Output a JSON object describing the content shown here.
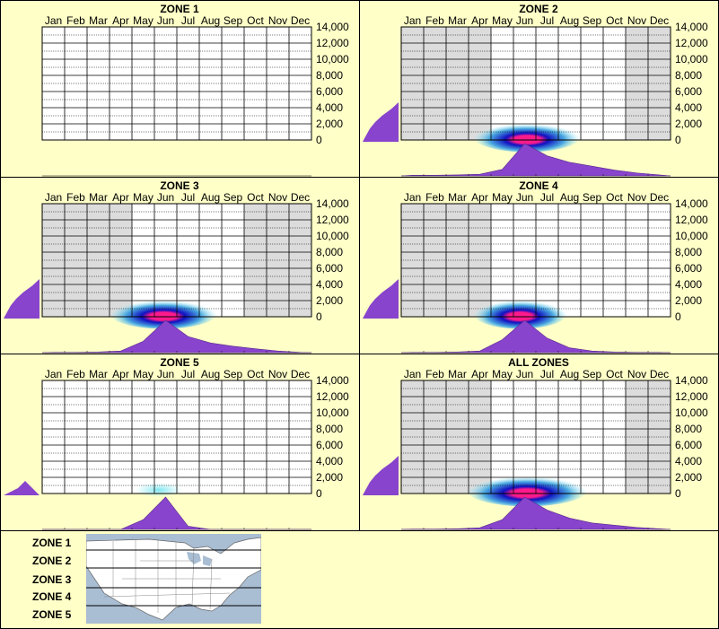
{
  "chart_data": [
    {
      "type": "heatmap",
      "title": "ZONE 1",
      "months": [
        "Jan",
        "Feb",
        "Mar",
        "Apr",
        "May",
        "Jun",
        "Jul",
        "Aug",
        "Sep",
        "Oct",
        "Nov",
        "Dec"
      ],
      "yticks": [
        "14,000",
        "12,000",
        "10,000",
        "8,000",
        "6,000",
        "4,000",
        "2,000",
        "0"
      ],
      "ylim": [
        0,
        14000
      ],
      "shaded_months": [],
      "hotspot": null,
      "elevation_profile": [],
      "seasonal_profile": []
    },
    {
      "type": "heatmap",
      "title": "ZONE 2",
      "months": [
        "Jan",
        "Feb",
        "Mar",
        "Apr",
        "May",
        "Jun",
        "Jul",
        "Aug",
        "Sep",
        "Oct",
        "Nov",
        "Dec"
      ],
      "yticks": [
        "14,000",
        "12,000",
        "10,000",
        "8,000",
        "6,000",
        "4,000",
        "2,000",
        "0"
      ],
      "ylim": [
        0,
        14000
      ],
      "shaded_months": [
        1,
        2,
        3,
        4,
        11,
        12
      ],
      "hotspot": {
        "month_center": 5.2,
        "month_spread": 1.6,
        "elevation_low": 0,
        "elevation_high": 1500,
        "peak_month": 5.2
      },
      "elevation_profile": [
        0.1,
        0.2,
        0.35,
        0.55,
        0.8,
        1.0
      ],
      "seasonal_profile": [
        0.02,
        0.02,
        0.03,
        0.05,
        0.2,
        1.0,
        0.62,
        0.42,
        0.3,
        0.18,
        0.09,
        0.03
      ]
    },
    {
      "type": "heatmap",
      "title": "ZONE 3",
      "months": [
        "Jan",
        "Feb",
        "Mar",
        "Apr",
        "May",
        "Jun",
        "Jul",
        "Aug",
        "Sep",
        "Oct",
        "Nov",
        "Dec"
      ],
      "yticks": [
        "14,000",
        "12,000",
        "10,000",
        "8,000",
        "6,000",
        "4,000",
        "2,000",
        "0"
      ],
      "ylim": [
        0,
        14000
      ],
      "shaded_months": [
        1,
        2,
        3,
        4,
        10,
        11,
        12
      ],
      "hotspot": {
        "month_center": 5.0,
        "month_spread": 1.6,
        "elevation_low": 0,
        "elevation_high": 1500,
        "peak_month": 5.0
      },
      "elevation_profile": [
        0.1,
        0.2,
        0.35,
        0.55,
        0.8,
        1.0
      ],
      "seasonal_profile": [
        0.01,
        0.01,
        0.02,
        0.05,
        0.35,
        1.0,
        0.5,
        0.3,
        0.2,
        0.12,
        0.05,
        0.01
      ]
    },
    {
      "type": "heatmap",
      "title": "ZONE 4",
      "months": [
        "Jan",
        "Feb",
        "Mar",
        "Apr",
        "May",
        "Jun",
        "Jul",
        "Aug",
        "Sep",
        "Oct",
        "Nov",
        "Dec"
      ],
      "yticks": [
        "14,000",
        "12,000",
        "10,000",
        "8,000",
        "6,000",
        "4,000",
        "2,000",
        "0"
      ],
      "ylim": [
        0,
        14000
      ],
      "shaded_months": [
        1,
        2,
        3,
        4
      ],
      "hotspot": {
        "month_center": 4.9,
        "month_spread": 1.4,
        "elevation_low": 0,
        "elevation_high": 1500,
        "peak_month": 4.9
      },
      "elevation_profile": [
        0.1,
        0.2,
        0.35,
        0.55,
        0.8,
        1.0
      ],
      "seasonal_profile": [
        0.01,
        0.01,
        0.02,
        0.05,
        0.4,
        1.0,
        0.45,
        0.15,
        0.05,
        0.02,
        0.01,
        0.01
      ]
    },
    {
      "type": "heatmap",
      "title": "ZONE 5",
      "months": [
        "Jan",
        "Feb",
        "Mar",
        "Apr",
        "May",
        "Jun",
        "Jul",
        "Aug",
        "Sep",
        "Oct",
        "Nov",
        "Dec"
      ],
      "yticks": [
        "14,000",
        "12,000",
        "10,000",
        "8,000",
        "6,000",
        "4,000",
        "2,000",
        "0"
      ],
      "ylim": [
        0,
        14000
      ],
      "shaded_months": [],
      "hotspot": {
        "month_center": 4.8,
        "month_spread": 0.7,
        "elevation_low": 0,
        "elevation_high": 400,
        "peak_month": 4.8,
        "faint": true
      },
      "elevation_profile": [
        0.4,
        0.6
      ],
      "seasonal_profile": [
        0,
        0,
        0,
        0,
        0.3,
        1.0,
        0.1,
        0,
        0,
        0,
        0,
        0
      ]
    },
    {
      "type": "heatmap",
      "title": "ALL ZONES",
      "months": [
        "Jan",
        "Feb",
        "Mar",
        "Apr",
        "May",
        "Jun",
        "Jul",
        "Aug",
        "Sep",
        "Oct",
        "Nov",
        "Dec"
      ],
      "yticks": [
        "14,000",
        "12,000",
        "10,000",
        "8,000",
        "6,000",
        "4,000",
        "2,000",
        "0"
      ],
      "ylim": [
        0,
        14000
      ],
      "shaded_months": [
        1,
        2,
        3,
        4,
        11,
        12
      ],
      "hotspot": {
        "month_center": 5.2,
        "month_spread": 1.8,
        "elevation_low": 0,
        "elevation_high": 1600,
        "peak_month": 5.2
      },
      "elevation_profile": [
        0.1,
        0.2,
        0.35,
        0.55,
        0.8,
        1.0
      ],
      "seasonal_profile": [
        0.01,
        0.01,
        0.02,
        0.05,
        0.3,
        1.0,
        0.6,
        0.35,
        0.2,
        0.13,
        0.06,
        0.02
      ]
    }
  ],
  "legend": {
    "zones": [
      "ZONE 1",
      "ZONE 2",
      "ZONE 3",
      "ZONE 4",
      "ZONE 5"
    ]
  },
  "colors": {
    "background": "#ffffc8",
    "profile_fill": "#8844cc",
    "grid": "#000000",
    "shade": "#dcdcdc",
    "heat_low": "#a0f0f8",
    "heat_mid": "#1010c0",
    "heat_high": "#ff1a8c",
    "map_water": "#a9bdd3",
    "map_land": "#ffffff"
  }
}
